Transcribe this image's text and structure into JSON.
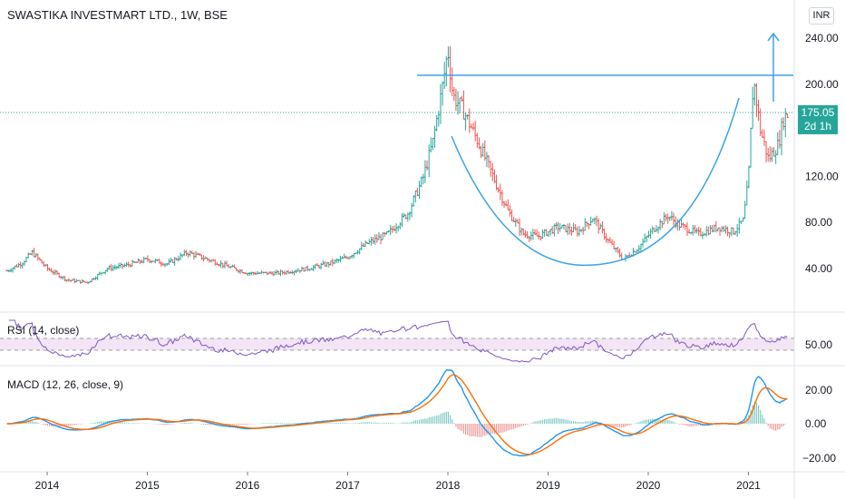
{
  "header": {
    "symbol_title": "SWASTIKA INVESTMART LTD., 1W, BSE",
    "currency": "INR"
  },
  "price_badge": {
    "price": "175.05",
    "countdown": "2d 1h"
  },
  "rsi": {
    "label": "RSI (14, close)",
    "ticks": [
      "50.00"
    ]
  },
  "macd": {
    "label": "MACD (12, 26, close, 9)",
    "ticks": [
      "20.00",
      "0.00",
      "−20.00"
    ]
  },
  "colors": {
    "up": "#26a69a",
    "down": "#ef5350",
    "macd_line": "#2196f3",
    "signal_line": "#ff6d00",
    "rsi_line": "#7e57c2",
    "rsi_band": "#f3e5f5",
    "drawing": "#3ba3e6"
  },
  "chart_data": {
    "type": "ohlc",
    "price_ticks": [
      240,
      200,
      160,
      120,
      80,
      40
    ],
    "price_tick_labels": [
      "240.00",
      "200.00",
      "120.00",
      "80.00",
      "40.00"
    ],
    "x_labels": [
      "2014",
      "2015",
      "2016",
      "2017",
      "2018",
      "2019",
      "2020",
      "2021"
    ],
    "last_price": 175.05,
    "resistance_level": 206,
    "target_price": 243,
    "series_points": [
      [
        2013.6,
        38
      ],
      [
        2013.75,
        45
      ],
      [
        2013.85,
        54
      ],
      [
        2014.0,
        40
      ],
      [
        2014.2,
        30
      ],
      [
        2014.4,
        28
      ],
      [
        2014.6,
        40
      ],
      [
        2014.8,
        43
      ],
      [
        2015.0,
        48
      ],
      [
        2015.2,
        44
      ],
      [
        2015.4,
        54
      ],
      [
        2015.6,
        48
      ],
      [
        2015.8,
        42
      ],
      [
        2016.0,
        36
      ],
      [
        2016.3,
        36
      ],
      [
        2016.6,
        40
      ],
      [
        2016.8,
        44
      ],
      [
        2017.0,
        50
      ],
      [
        2017.2,
        62
      ],
      [
        2017.4,
        70
      ],
      [
        2017.6,
        88
      ],
      [
        2017.75,
        118
      ],
      [
        2017.85,
        150
      ],
      [
        2017.95,
        200
      ],
      [
        2018.0,
        230
      ],
      [
        2018.05,
        190
      ],
      [
        2018.15,
        178
      ],
      [
        2018.3,
        150
      ],
      [
        2018.45,
        120
      ],
      [
        2018.6,
        90
      ],
      [
        2018.75,
        70
      ],
      [
        2018.9,
        68
      ],
      [
        2019.1,
        76
      ],
      [
        2019.3,
        72
      ],
      [
        2019.45,
        84
      ],
      [
        2019.6,
        64
      ],
      [
        2019.75,
        48
      ],
      [
        2019.9,
        58
      ],
      [
        2020.05,
        74
      ],
      [
        2020.2,
        86
      ],
      [
        2020.3,
        78
      ],
      [
        2020.5,
        70
      ],
      [
        2020.7,
        76
      ],
      [
        2020.85,
        72
      ],
      [
        2020.95,
        82
      ],
      [
        2021.0,
        118
      ],
      [
        2021.05,
        205
      ],
      [
        2021.12,
        160
      ],
      [
        2021.2,
        135
      ],
      [
        2021.3,
        148
      ],
      [
        2021.35,
        170
      ],
      [
        2021.4,
        175
      ]
    ],
    "rsi_level": 50,
    "annotations": {
      "cup_curve": true,
      "resistance_line": 206,
      "target_arrow": 243
    }
  }
}
